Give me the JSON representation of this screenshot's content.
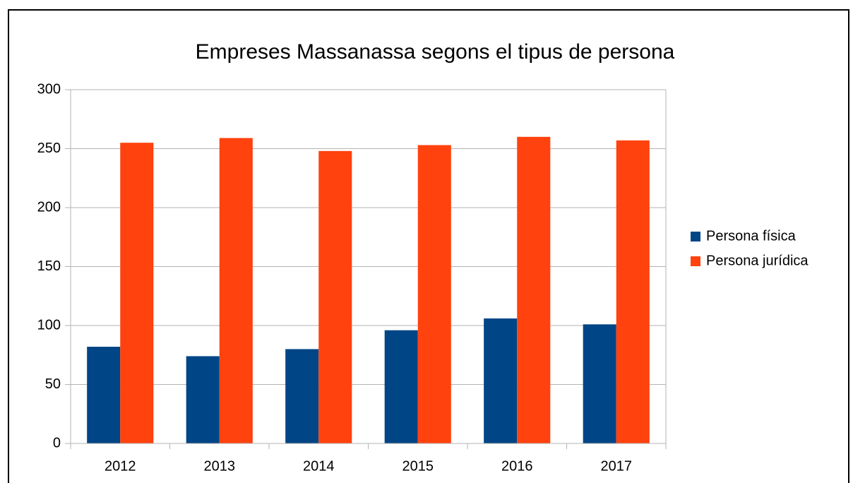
{
  "chart_data": {
    "type": "bar",
    "title": "Empreses Massanassa segons el tipus de persona",
    "categories": [
      "2012",
      "2013",
      "2014",
      "2015",
      "2016",
      "2017"
    ],
    "series": [
      {
        "name": "Persona física",
        "color": "#004586",
        "values": [
          82,
          74,
          80,
          96,
          106,
          101
        ]
      },
      {
        "name": "Persona jurídica",
        "color": "#ff420e",
        "values": [
          255,
          259,
          248,
          253,
          260,
          257
        ]
      }
    ],
    "ylim": [
      0,
      300
    ],
    "yticks": [
      0,
      50,
      100,
      150,
      200,
      250,
      300
    ],
    "grid": true,
    "legend": "right"
  }
}
